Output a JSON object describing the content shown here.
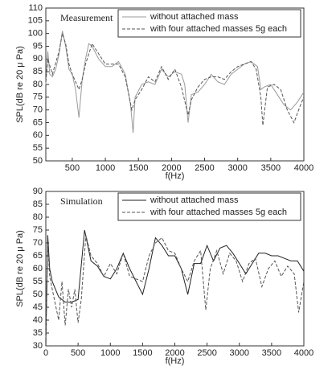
{
  "chart_data": [
    {
      "type": "line",
      "annotation": "Measurement",
      "xlabel": "f(Hz)",
      "ylabel": "SPL(dB re 20 μ Pa)",
      "xlim": [
        100,
        4000
      ],
      "xticks": [
        500,
        1000,
        1500,
        2000,
        2500,
        3000,
        3500,
        4000
      ],
      "ylim": [
        50,
        110
      ],
      "yticks": [
        50,
        55,
        60,
        65,
        70,
        75,
        80,
        85,
        90,
        95,
        100,
        105,
        110
      ],
      "legend": "upper right",
      "series": [
        {
          "name": "without attached mass",
          "color": "#9a9a9a",
          "dash": false,
          "x": [
            100,
            130,
            160,
            200,
            250,
            300,
            350,
            400,
            450,
            500,
            550,
            600,
            650,
            700,
            750,
            800,
            900,
            1000,
            1100,
            1200,
            1300,
            1380,
            1420,
            1450,
            1550,
            1650,
            1750,
            1850,
            1950,
            2050,
            2150,
            2200,
            2250,
            2300,
            2400,
            2500,
            2600,
            2700,
            2800,
            2900,
            3000,
            3100,
            3200,
            3300,
            3350,
            3400,
            3500,
            3600,
            3700,
            3800,
            3900,
            4000
          ],
          "values": [
            80,
            93,
            84,
            83,
            86,
            92,
            101,
            95,
            86,
            84,
            78,
            67,
            82,
            90,
            96,
            95,
            90,
            87,
            87,
            89,
            84,
            72,
            61,
            75,
            80,
            81,
            80,
            86,
            83,
            85,
            84,
            80,
            65,
            76,
            77,
            80,
            84,
            81,
            80,
            84,
            86,
            88,
            89,
            87,
            78,
            79,
            80,
            76,
            72,
            70,
            73,
            77
          ]
        },
        {
          "name": "with four attached masses 5g each",
          "color": "#555555",
          "dash": true,
          "x": [
            100,
            130,
            200,
            300,
            350,
            400,
            450,
            500,
            600,
            650,
            700,
            800,
            900,
            1000,
            1100,
            1200,
            1300,
            1400,
            1450,
            1550,
            1650,
            1750,
            1850,
            1950,
            2050,
            2150,
            2250,
            2300,
            2400,
            2500,
            2600,
            2700,
            2800,
            2900,
            3000,
            3100,
            3200,
            3280,
            3350,
            3380,
            3450,
            3550,
            3650,
            3750,
            3850,
            3950,
            4000
          ],
          "values": [
            81,
            90,
            84,
            93,
            100,
            96,
            88,
            84,
            78,
            82,
            88,
            96,
            92,
            88,
            88,
            88,
            83,
            70,
            74,
            78,
            83,
            81,
            87,
            82,
            86,
            79,
            68,
            74,
            79,
            82,
            83,
            83,
            82,
            85,
            87,
            88,
            89,
            86,
            75,
            64,
            79,
            80,
            78,
            70,
            65,
            72,
            75
          ]
        }
      ]
    },
    {
      "type": "line",
      "annotation": "Simulation",
      "xlabel": "f(Hz)",
      "ylabel": "SPL(dB re 20 μ Pa)",
      "xlim": [
        0,
        4000
      ],
      "xticks": [
        0,
        500,
        1000,
        1500,
        2000,
        2500,
        3000,
        3500,
        4000
      ],
      "ylim": [
        30,
        90
      ],
      "yticks": [
        30,
        35,
        40,
        45,
        50,
        55,
        60,
        65,
        70,
        75,
        80,
        85,
        90
      ],
      "legend": "upper right",
      "series": [
        {
          "name": "without attached mass",
          "color": "#222222",
          "dash": false,
          "x": [
            0,
            30,
            60,
            100,
            200,
            300,
            400,
            500,
            600,
            700,
            800,
            900,
            1000,
            1100,
            1200,
            1300,
            1400,
            1500,
            1600,
            1700,
            1800,
            1900,
            2000,
            2100,
            2200,
            2300,
            2400,
            2500,
            2600,
            2700,
            2800,
            2900,
            3000,
            3100,
            3200,
            3300,
            3400,
            3500,
            3600,
            3700,
            3800,
            3900,
            4000
          ],
          "values": [
            30,
            73,
            60,
            55,
            49,
            47,
            47,
            48,
            75,
            63,
            61,
            57,
            56,
            60,
            66,
            60,
            55,
            50,
            60,
            72,
            69,
            65,
            65,
            60,
            50,
            62,
            62,
            69,
            63,
            68,
            69,
            66,
            62,
            58,
            62,
            66,
            66,
            65,
            65,
            64,
            63,
            63,
            59
          ]
        },
        {
          "name": "with four attached masses 5g each",
          "color": "#555555",
          "dash": true,
          "x": [
            0,
            30,
            60,
            100,
            200,
            250,
            300,
            350,
            400,
            450,
            500,
            550,
            620,
            700,
            800,
            900,
            1000,
            1100,
            1200,
            1300,
            1400,
            1500,
            1600,
            1700,
            1800,
            1900,
            2000,
            2100,
            2200,
            2300,
            2400,
            2480,
            2550,
            2650,
            2750,
            2850,
            2950,
            3050,
            3150,
            3250,
            3350,
            3450,
            3550,
            3650,
            3750,
            3850,
            3920,
            4000
          ],
          "values": [
            33,
            70,
            57,
            52,
            40,
            55,
            38,
            52,
            45,
            52,
            39,
            48,
            73,
            65,
            62,
            57,
            62,
            58,
            66,
            57,
            56,
            55,
            65,
            70,
            72,
            67,
            66,
            60,
            55,
            63,
            67,
            44,
            60,
            67,
            58,
            66,
            63,
            55,
            62,
            64,
            53,
            60,
            63,
            57,
            61,
            58,
            43,
            55
          ]
        }
      ]
    }
  ]
}
